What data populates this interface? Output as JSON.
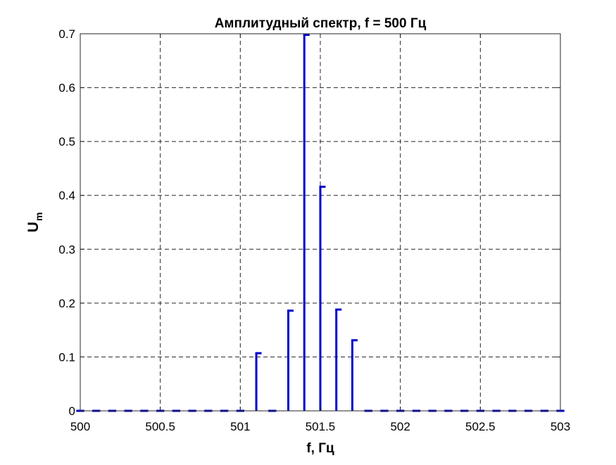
{
  "chart_data": {
    "type": "stem",
    "title": "Амплитудный спектр, f = 500 Гц",
    "xlabel": "f, Гц",
    "ylabel": {
      "main": "U",
      "subscript": "m"
    },
    "xlim": [
      500,
      503
    ],
    "ylim": [
      0,
      0.7
    ],
    "xticks": [
      500,
      500.5,
      501,
      501.5,
      502,
      502.5,
      503
    ],
    "xtick_labels": [
      "500",
      "500.5",
      "501",
      "501.5",
      "502",
      "502.5",
      "503"
    ],
    "yticks": [
      0,
      0.1,
      0.2,
      0.3,
      0.4,
      0.5,
      0.6,
      0.7
    ],
    "ytick_labels": [
      "0",
      "0.1",
      "0.2",
      "0.3",
      "0.4",
      "0.5",
      "0.6",
      "0.7"
    ],
    "grid": true,
    "color": "#0000cc",
    "x_step": 0.1,
    "series": [
      {
        "x": [
          500.0,
          500.1,
          500.2,
          500.3,
          500.4,
          500.5,
          500.6,
          500.7,
          500.8,
          500.9,
          501.0,
          501.1,
          501.2,
          501.3,
          501.4,
          501.5,
          501.6,
          501.7,
          501.8,
          501.9,
          502.0,
          502.1,
          502.2,
          502.3,
          502.4,
          502.5,
          502.6,
          502.7,
          502.8,
          502.9,
          503.0
        ],
        "y": [
          0,
          0,
          0,
          0,
          0,
          0,
          0,
          0,
          0,
          0,
          0,
          0.107,
          0,
          0.186,
          0.698,
          0.416,
          0.188,
          0.131,
          0,
          0,
          0,
          0,
          0,
          0,
          0,
          0,
          0,
          0,
          0,
          0,
          0
        ]
      }
    ]
  }
}
